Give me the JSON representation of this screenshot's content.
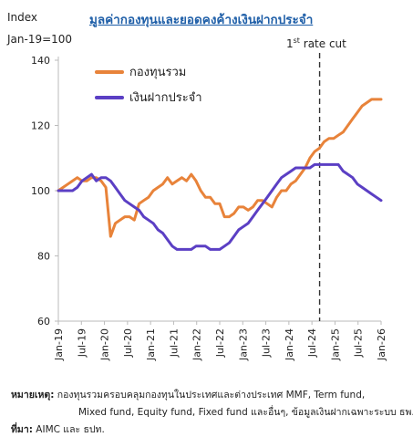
{
  "chart_data": {
    "type": "line",
    "title": "มูลค่ากองทุนและยอดคงค้างเงินฝากประจำ",
    "ylabel": "Index",
    "ylabel_base": "Jan-19=100",
    "ylim": [
      60,
      140
    ],
    "yticks": [
      "60",
      "80",
      "100",
      "120",
      "140"
    ],
    "xticks": [
      "Jan-19",
      "Jul-19",
      "Jan-20",
      "Jul-20",
      "Jan-21",
      "Jul-21",
      "Jan-22",
      "Jul-22",
      "Jan-23",
      "Jul-23",
      "Jan-24",
      "Jul-24",
      "Jan-25",
      "Jul-25",
      "Jan-26"
    ],
    "grid": false,
    "legend_position": "top-left",
    "annotation": {
      "text": "1",
      "sup": "st",
      "rest": " rate cut",
      "x": "Sep-24"
    },
    "series": [
      {
        "name": "กองทุนรวม",
        "color": "#e8833a",
        "values": [
          100,
          101,
          102,
          103,
          104,
          103,
          103,
          104,
          104,
          103,
          101,
          86,
          90,
          91,
          92,
          92,
          91,
          96,
          97,
          98,
          100,
          101,
          102,
          104,
          102,
          103,
          104,
          103,
          105,
          103,
          100,
          98,
          98,
          96,
          96,
          92,
          92,
          93,
          95,
          95,
          94,
          95,
          97,
          97,
          96,
          95,
          98,
          100,
          100,
          102,
          103,
          105,
          107,
          110,
          112,
          113,
          115,
          116,
          116,
          117,
          118,
          120,
          122,
          124,
          126,
          127,
          128,
          128,
          128
        ]
      },
      {
        "name": "เงินฝากประจำ",
        "color": "#5b3fc4",
        "values": [
          100,
          100,
          100,
          100,
          101,
          103,
          104,
          105,
          103,
          104,
          104,
          103,
          101,
          99,
          97,
          96,
          95,
          94,
          92,
          91,
          90,
          88,
          87,
          85,
          83,
          82,
          82,
          82,
          82,
          83,
          83,
          83,
          82,
          82,
          82,
          83,
          84,
          86,
          88,
          89,
          90,
          92,
          94,
          96,
          98,
          100,
          102,
          104,
          105,
          106,
          107,
          107,
          107,
          107,
          108,
          108,
          108,
          108,
          108,
          108,
          106,
          105,
          104,
          102,
          101,
          100,
          99,
          98,
          97
        ]
      }
    ]
  },
  "footnote": {
    "label1": "หมายเหตุ:",
    "line1": " กองทุนรวมครอบคลุมกองทุนในประเทศและต่างประเทศ MMF, Term fund,",
    "line2": "Mixed fund, Equity fund, Fixed fund และอื่นๆ, ข้อมูลเงินฝากเฉพาะระบบ ธพ.",
    "label2": "ที่มา:",
    "line3": " AIMC และ ธปท."
  }
}
